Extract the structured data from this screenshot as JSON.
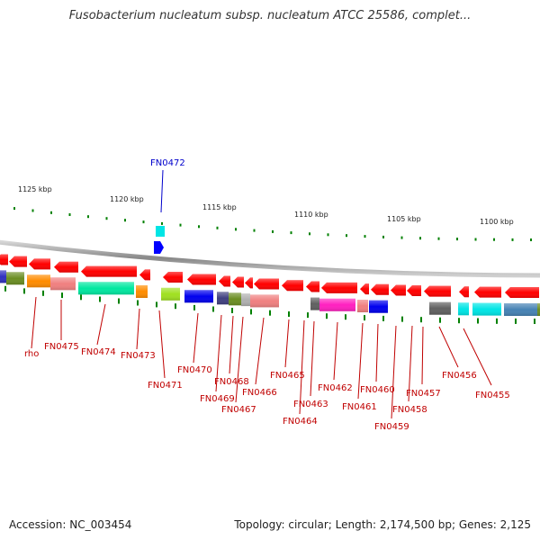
{
  "title": "Fusobacterium nucleatum subsp. nucleatum ATCC 25586, complet...",
  "accession": "Accession: NC_003454",
  "summary": "Topology: circular; Length: 2,174,500 bp; Genes: 2,125",
  "highlight_gene": "FN0472",
  "scale_labels": [
    "1125 kbp",
    "1120 kbp",
    "1115 kbp",
    "1110 kbp",
    "1105 kbp",
    "1100 kbp"
  ],
  "gene_labels": [
    "rho",
    "FN0475",
    "FN0474",
    "FN0473",
    "FN0471",
    "FN0470",
    "FN0469",
    "FN0468",
    "FN0467",
    "FN0466",
    "FN0465",
    "FN0464",
    "FN0463",
    "FN0462",
    "FN0461",
    "FN0460",
    "FN0459",
    "FN0458",
    "FN0457",
    "FN0456",
    "FN0455"
  ],
  "colors": {
    "forward_gene": "#ff0000",
    "highlight": "#0000ff",
    "label": "#c00000",
    "tick": "#008000",
    "backbone": "#999999"
  }
}
